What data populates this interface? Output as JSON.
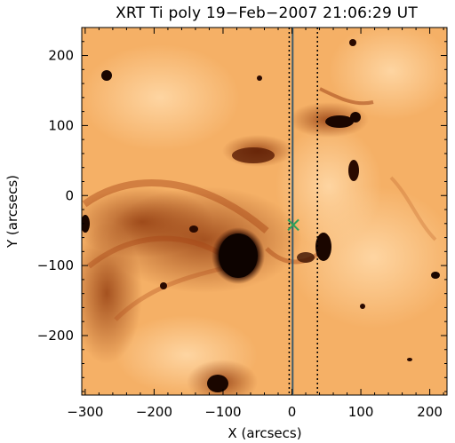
{
  "title": "XRT Ti poly 19−Feb−2007 21:06:29 UT",
  "xlabel": "X (arcsecs)",
  "ylabel": "Y (arcsecs)",
  "x_ticks": [
    {
      "value": -300,
      "label": "−300"
    },
    {
      "value": -200,
      "label": "−200"
    },
    {
      "value": -100,
      "label": "−100"
    },
    {
      "value": 0,
      "label": "0"
    },
    {
      "value": 100,
      "label": "100"
    },
    {
      "value": 200,
      "label": "200"
    }
  ],
  "y_ticks": [
    {
      "value": 200,
      "label": "200"
    },
    {
      "value": 100,
      "label": "100"
    },
    {
      "value": 0,
      "label": "0"
    },
    {
      "value": -100,
      "label": "−100"
    },
    {
      "value": -200,
      "label": "−200"
    }
  ],
  "x_range": [
    -305,
    225
  ],
  "y_range": [
    -285,
    240
  ],
  "colors": {
    "background": "#f7b56c",
    "dark_feature": "#1a0600",
    "solid_line": "#3c5a6a",
    "marker": "#2fa05a"
  },
  "vertical_lines": [
    {
      "style": "solid",
      "x": 1
    },
    {
      "style": "dotted",
      "x": -4
    },
    {
      "style": "dotted",
      "x": 37
    }
  ],
  "marker": {
    "shape": "x",
    "x": 2,
    "y": -42
  }
}
